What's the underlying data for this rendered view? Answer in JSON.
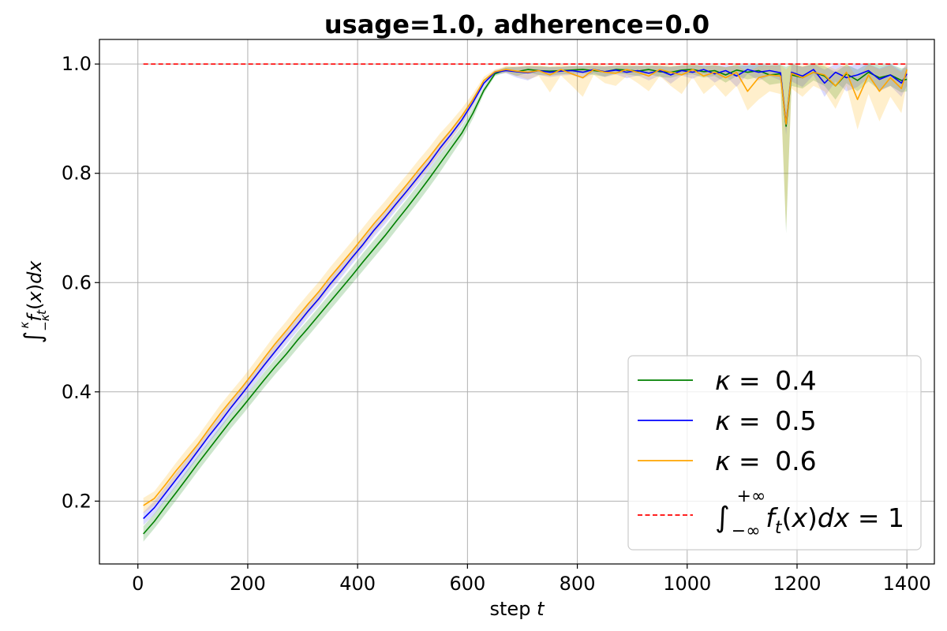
{
  "chart_data": {
    "type": "line",
    "title": "usage=1.0, adherence=0.0",
    "xlabel_text": "step ",
    "xlabel_var": "t",
    "ylabel": "∫_{−κ}^{κ} f_t(x)dx",
    "xlim": [
      -70,
      1450
    ],
    "ylim": [
      0.085,
      1.045
    ],
    "xticks": [
      0,
      200,
      400,
      600,
      800,
      1000,
      1200,
      1400
    ],
    "xtick_labels": [
      "0",
      "200",
      "400",
      "600",
      "800",
      "1000",
      "1200",
      "1400"
    ],
    "yticks": [
      0.2,
      0.4,
      0.6,
      0.8,
      1.0
    ],
    "ytick_labels": [
      "0.2",
      "0.4",
      "0.6",
      "0.8",
      "1.0"
    ],
    "grid": true,
    "legend_position": "lower right",
    "x": [
      10,
      30,
      50,
      70,
      90,
      110,
      130,
      150,
      170,
      190,
      210,
      230,
      250,
      270,
      290,
      310,
      330,
      350,
      370,
      390,
      410,
      430,
      450,
      470,
      490,
      510,
      530,
      550,
      570,
      590,
      610,
      630,
      650,
      670,
      690,
      710,
      730,
      750,
      770,
      790,
      810,
      830,
      850,
      870,
      890,
      910,
      930,
      950,
      970,
      990,
      1010,
      1030,
      1050,
      1070,
      1090,
      1110,
      1130,
      1150,
      1170,
      1180,
      1190,
      1210,
      1230,
      1250,
      1270,
      1290,
      1310,
      1330,
      1350,
      1370,
      1390,
      1400
    ],
    "series": [
      {
        "name": "κ = 0.4",
        "color": "#008000",
        "band_color": "#008000",
        "values": [
          0.14,
          0.163,
          0.19,
          0.216,
          0.243,
          0.27,
          0.296,
          0.322,
          0.348,
          0.372,
          0.397,
          0.422,
          0.446,
          0.469,
          0.494,
          0.517,
          0.541,
          0.565,
          0.589,
          0.613,
          0.638,
          0.662,
          0.686,
          0.712,
          0.737,
          0.763,
          0.79,
          0.818,
          0.846,
          0.874,
          0.91,
          0.952,
          0.982,
          0.99,
          0.986,
          0.99,
          0.988,
          0.987,
          0.988,
          0.989,
          0.99,
          0.988,
          0.986,
          0.99,
          0.989,
          0.987,
          0.99,
          0.986,
          0.985,
          0.989,
          0.99,
          0.986,
          0.988,
          0.98,
          0.989,
          0.985,
          0.988,
          0.98,
          0.982,
          0.886,
          0.98,
          0.975,
          0.985,
          0.978,
          0.96,
          0.982,
          0.97,
          0.985,
          0.975,
          0.98,
          0.97,
          0.972
        ],
        "lower": [
          0.126,
          0.15,
          0.176,
          0.202,
          0.229,
          0.256,
          0.282,
          0.308,
          0.334,
          0.358,
          0.383,
          0.408,
          0.432,
          0.455,
          0.479,
          0.502,
          0.526,
          0.55,
          0.574,
          0.598,
          0.622,
          0.646,
          0.67,
          0.696,
          0.721,
          0.747,
          0.774,
          0.802,
          0.832,
          0.862,
          0.9,
          0.946,
          0.978,
          0.985,
          0.978,
          0.984,
          0.98,
          0.979,
          0.981,
          0.982,
          0.983,
          0.98,
          0.977,
          0.983,
          0.981,
          0.978,
          0.982,
          0.976,
          0.975,
          0.98,
          0.981,
          0.975,
          0.978,
          0.966,
          0.978,
          0.972,
          0.976,
          0.962,
          0.965,
          0.69,
          0.96,
          0.955,
          0.97,
          0.96,
          0.935,
          0.965,
          0.95,
          0.968,
          0.952,
          0.96,
          0.948,
          0.95
        ],
        "upper": [
          0.154,
          0.177,
          0.204,
          0.23,
          0.257,
          0.284,
          0.31,
          0.336,
          0.362,
          0.386,
          0.411,
          0.436,
          0.46,
          0.483,
          0.509,
          0.532,
          0.556,
          0.58,
          0.604,
          0.628,
          0.654,
          0.678,
          0.702,
          0.728,
          0.753,
          0.779,
          0.806,
          0.834,
          0.86,
          0.886,
          0.92,
          0.958,
          0.986,
          0.995,
          0.994,
          0.996,
          0.996,
          0.995,
          0.995,
          0.996,
          0.997,
          0.996,
          0.995,
          0.997,
          0.997,
          0.996,
          0.998,
          0.996,
          0.995,
          0.998,
          0.999,
          0.997,
          0.998,
          0.994,
          0.999,
          0.998,
          1.0,
          0.998,
          0.999,
          0.995,
          1.0,
          0.995,
          1.0,
          0.996,
          0.985,
          0.999,
          0.99,
          1.002,
          0.998,
          1.0,
          0.992,
          0.994
        ]
      },
      {
        "name": "κ = 0.5",
        "color": "#0000ff",
        "band_color": "#4040ff",
        "values": [
          0.168,
          0.188,
          0.214,
          0.24,
          0.266,
          0.293,
          0.32,
          0.345,
          0.372,
          0.397,
          0.423,
          0.449,
          0.474,
          0.499,
          0.523,
          0.548,
          0.571,
          0.597,
          0.621,
          0.646,
          0.67,
          0.696,
          0.719,
          0.744,
          0.768,
          0.793,
          0.818,
          0.846,
          0.871,
          0.898,
          0.93,
          0.965,
          0.985,
          0.988,
          0.986,
          0.984,
          0.988,
          0.985,
          0.987,
          0.988,
          0.985,
          0.99,
          0.986,
          0.989,
          0.985,
          0.988,
          0.983,
          0.988,
          0.98,
          0.988,
          0.985,
          0.99,
          0.982,
          0.988,
          0.978,
          0.99,
          0.985,
          0.988,
          0.984,
          0.89,
          0.985,
          0.978,
          0.99,
          0.965,
          0.985,
          0.975,
          0.98,
          0.988,
          0.972,
          0.98,
          0.965,
          0.982
        ],
        "lower": [
          0.156,
          0.176,
          0.202,
          0.228,
          0.254,
          0.281,
          0.308,
          0.333,
          0.36,
          0.385,
          0.411,
          0.437,
          0.462,
          0.487,
          0.511,
          0.536,
          0.559,
          0.585,
          0.609,
          0.634,
          0.658,
          0.684,
          0.707,
          0.732,
          0.756,
          0.781,
          0.806,
          0.834,
          0.861,
          0.888,
          0.921,
          0.959,
          0.981,
          0.983,
          0.975,
          0.97,
          0.98,
          0.976,
          0.979,
          0.98,
          0.973,
          0.983,
          0.976,
          0.981,
          0.974,
          0.979,
          0.97,
          0.979,
          0.964,
          0.979,
          0.973,
          0.982,
          0.966,
          0.978,
          0.958,
          0.982,
          0.97,
          0.978,
          0.97,
          0.87,
          0.968,
          0.958,
          0.98,
          0.94,
          0.968,
          0.95,
          0.958,
          0.975,
          0.95,
          0.96,
          0.94,
          0.96
        ],
        "upper": [
          0.18,
          0.2,
          0.226,
          0.252,
          0.278,
          0.305,
          0.332,
          0.357,
          0.384,
          0.409,
          0.435,
          0.461,
          0.486,
          0.511,
          0.535,
          0.56,
          0.583,
          0.609,
          0.633,
          0.658,
          0.682,
          0.708,
          0.731,
          0.756,
          0.78,
          0.805,
          0.83,
          0.858,
          0.881,
          0.908,
          0.939,
          0.971,
          0.989,
          0.993,
          0.995,
          0.996,
          0.995,
          0.994,
          0.995,
          0.996,
          0.996,
          0.997,
          0.996,
          0.997,
          0.996,
          0.997,
          0.996,
          0.997,
          0.995,
          0.997,
          0.997,
          0.998,
          0.997,
          0.998,
          0.996,
          0.998,
          0.998,
          0.998,
          0.998,
          0.91,
          1.0,
          0.995,
          1.0,
          0.99,
          1.0,
          0.995,
          1.0,
          1.0,
          0.992,
          1.0,
          0.988,
          1.0
        ]
      },
      {
        "name": "κ = 0.6",
        "color": "#ffa500",
        "band_color": "#ffb000",
        "values": [
          0.192,
          0.205,
          0.23,
          0.256,
          0.28,
          0.305,
          0.333,
          0.36,
          0.385,
          0.409,
          0.435,
          0.462,
          0.488,
          0.512,
          0.537,
          0.561,
          0.584,
          0.61,
          0.634,
          0.658,
          0.683,
          0.708,
          0.731,
          0.756,
          0.78,
          0.805,
          0.829,
          0.855,
          0.879,
          0.905,
          0.935,
          0.97,
          0.986,
          0.99,
          0.987,
          0.985,
          0.988,
          0.98,
          0.99,
          0.982,
          0.975,
          0.99,
          0.985,
          0.983,
          0.99,
          0.985,
          0.978,
          0.99,
          0.985,
          0.98,
          0.99,
          0.978,
          0.985,
          0.975,
          0.985,
          0.95,
          0.975,
          0.98,
          0.978,
          0.89,
          0.983,
          0.975,
          0.985,
          0.98,
          0.96,
          0.985,
          0.935,
          0.98,
          0.95,
          0.975,
          0.955,
          0.99
        ],
        "lower": [
          0.178,
          0.192,
          0.216,
          0.241,
          0.264,
          0.29,
          0.318,
          0.344,
          0.369,
          0.393,
          0.419,
          0.446,
          0.471,
          0.495,
          0.519,
          0.543,
          0.566,
          0.592,
          0.616,
          0.64,
          0.665,
          0.69,
          0.713,
          0.738,
          0.762,
          0.787,
          0.811,
          0.837,
          0.863,
          0.891,
          0.924,
          0.963,
          0.982,
          0.984,
          0.978,
          0.972,
          0.978,
          0.948,
          0.979,
          0.96,
          0.94,
          0.98,
          0.965,
          0.96,
          0.978,
          0.965,
          0.95,
          0.978,
          0.96,
          0.945,
          0.976,
          0.945,
          0.962,
          0.94,
          0.96,
          0.915,
          0.935,
          0.95,
          0.945,
          0.7,
          0.955,
          0.94,
          0.96,
          0.95,
          0.918,
          0.96,
          0.88,
          0.945,
          0.895,
          0.94,
          0.91,
          0.965
        ],
        "upper": [
          0.206,
          0.218,
          0.244,
          0.271,
          0.296,
          0.32,
          0.348,
          0.376,
          0.401,
          0.425,
          0.451,
          0.478,
          0.505,
          0.529,
          0.555,
          0.579,
          0.602,
          0.628,
          0.652,
          0.676,
          0.701,
          0.726,
          0.749,
          0.774,
          0.798,
          0.823,
          0.847,
          0.873,
          0.895,
          0.919,
          0.946,
          0.977,
          0.99,
          0.996,
          0.996,
          0.998,
          0.998,
          0.995,
          0.999,
          0.997,
          0.995,
          1.0,
          0.998,
          0.997,
          1.0,
          0.998,
          0.996,
          1.0,
          0.998,
          0.997,
          1.0,
          0.995,
          0.999,
          0.994,
          0.999,
          0.985,
          0.996,
          0.998,
          0.998,
          0.99,
          1.0,
          0.997,
          1.002,
          1.0,
          0.99,
          1.002,
          0.975,
          1.0,
          0.99,
          0.998,
          0.985,
          1.003
        ]
      }
    ],
    "reference_line": {
      "label": "∫_{−∞}^{+∞} f_t(x)dx = 1",
      "y": 1.0,
      "x_start": 10,
      "x_end": 1400,
      "color": "#ff0000",
      "style": "dashed"
    },
    "legend": [
      {
        "prefix": "κ = ",
        "value": "0.4",
        "color": "#008000",
        "style": "solid"
      },
      {
        "prefix": "κ = ",
        "value": "0.5",
        "color": "#0000ff",
        "style": "solid"
      },
      {
        "prefix": "κ = ",
        "value": "0.6",
        "color": "#ffa500",
        "style": "solid"
      },
      {
        "prefix": "",
        "value": "",
        "color": "#ff0000",
        "style": "dashed"
      }
    ]
  }
}
